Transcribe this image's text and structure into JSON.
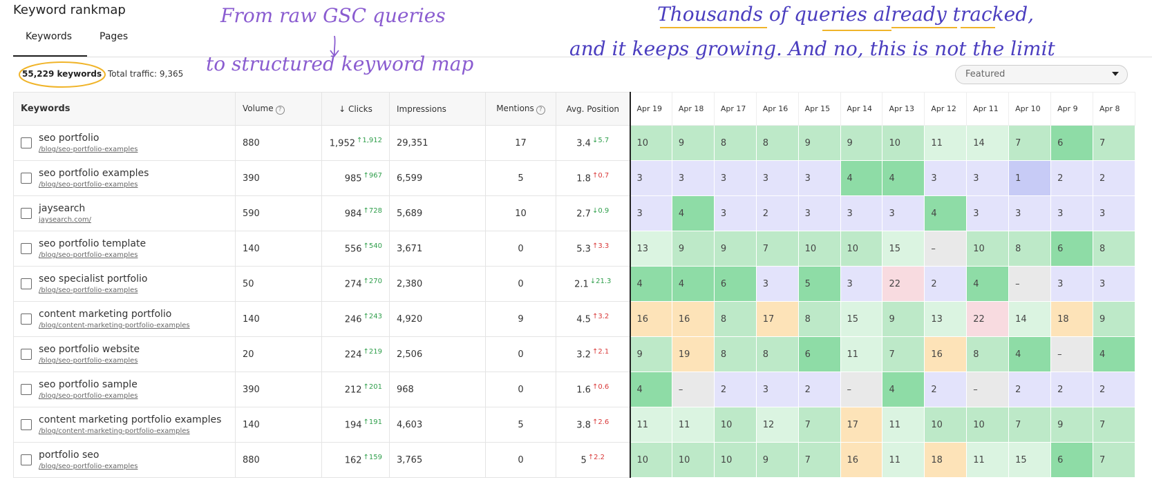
{
  "header": {
    "title": "Keyword rankmap",
    "tabs": [
      "Keywords",
      "Pages"
    ],
    "summary_keywords": "55,229 keywords",
    "summary_traffic": "Total traffic: 9,365",
    "sort": "Featured"
  },
  "annotations": [
    "From raw GSC queries",
    "to structured keyword map",
    "Thousands of queries already tracked,",
    "and it keeps growing. And no, this is not the limit"
  ],
  "table": {
    "columns": [
      "Keywords",
      "Volume",
      "↓ Clicks",
      "Impressions",
      "Mentions",
      "Avg. Position"
    ],
    "dates": [
      "Apr 19",
      "Apr 18",
      "Apr 17",
      "Apr 16",
      "Apr 15",
      "Apr 14",
      "Apr 13",
      "Apr 12",
      "Apr 11",
      "Apr 10",
      "Apr 9",
      "Apr 8"
    ],
    "rows": [
      {
        "keyword": "seo portfolio",
        "url": "/blog/seo-portfolio-examples",
        "volume": "880",
        "clicks": "1,952",
        "clicks_change": "↑1,912",
        "impressions": "29,351",
        "mentions": "17",
        "position": "3.4",
        "position_change": "↓5.7",
        "ranks": [
          10,
          9,
          8,
          8,
          9,
          9,
          10,
          11,
          14,
          7,
          6,
          7
        ]
      },
      {
        "keyword": "seo portfolio examples",
        "url": "/blog/seo-portfolio-examples",
        "volume": "390",
        "clicks": "985",
        "clicks_change": "↑967",
        "impressions": "6,599",
        "mentions": "5",
        "position": "1.8",
        "position_change": "↑0.7",
        "ranks": [
          3,
          3,
          3,
          3,
          3,
          4,
          4,
          3,
          3,
          1,
          2,
          2
        ]
      },
      {
        "keyword": "jaysearch",
        "url": "jaysearch.com/",
        "volume": "590",
        "clicks": "984",
        "clicks_change": "↑728",
        "impressions": "5,689",
        "mentions": "10",
        "position": "2.7",
        "position_change": "↓0.9",
        "ranks": [
          3,
          4,
          3,
          2,
          3,
          3,
          3,
          4,
          3,
          3,
          3,
          3
        ]
      },
      {
        "keyword": "seo portfolio template",
        "url": "/blog/seo-portfolio-examples",
        "volume": "140",
        "clicks": "556",
        "clicks_change": "↑540",
        "impressions": "3,671",
        "mentions": "0",
        "position": "5.3",
        "position_change": "↑3.3",
        "ranks": [
          13,
          9,
          9,
          7,
          10,
          10,
          15,
          "–",
          10,
          8,
          6,
          8
        ]
      },
      {
        "keyword": "seo specialist portfolio",
        "url": "/blog/seo-portfolio-examples",
        "volume": "50",
        "clicks": "274",
        "clicks_change": "↑270",
        "impressions": "2,380",
        "mentions": "0",
        "position": "2.1",
        "position_change": "↓21.3",
        "ranks": [
          4,
          4,
          6,
          3,
          5,
          3,
          22,
          2,
          4,
          "–",
          3,
          3
        ]
      },
      {
        "keyword": "content marketing portfolio",
        "url": "/blog/content-marketing-portfolio-examples",
        "volume": "140",
        "clicks": "246",
        "clicks_change": "↑243",
        "impressions": "4,920",
        "mentions": "9",
        "position": "4.5",
        "position_change": "↑3.2",
        "ranks": [
          16,
          16,
          8,
          17,
          8,
          15,
          9,
          13,
          22,
          14,
          18,
          9
        ]
      },
      {
        "keyword": "seo portfolio website",
        "url": "/blog/seo-portfolio-examples",
        "volume": "20",
        "clicks": "224",
        "clicks_change": "↑219",
        "impressions": "2,506",
        "mentions": "0",
        "position": "3.2",
        "position_change": "↑2.1",
        "ranks": [
          9,
          19,
          8,
          8,
          6,
          11,
          7,
          16,
          8,
          4,
          "–",
          4
        ]
      },
      {
        "keyword": "seo portfolio sample",
        "url": "/blog/seo-portfolio-examples",
        "volume": "390",
        "clicks": "212",
        "clicks_change": "↑201",
        "impressions": "968",
        "mentions": "0",
        "position": "1.6",
        "position_change": "↑0.6",
        "ranks": [
          4,
          "–",
          2,
          3,
          2,
          "–",
          4,
          2,
          "–",
          2,
          2,
          2
        ]
      },
      {
        "keyword": "content marketing portfolio examples",
        "url": "/blog/content-marketing-portfolio-examples",
        "volume": "140",
        "clicks": "194",
        "clicks_change": "↑191",
        "impressions": "4,603",
        "mentions": "5",
        "position": "3.8",
        "position_change": "↑2.6",
        "ranks": [
          11,
          11,
          10,
          12,
          7,
          17,
          11,
          10,
          10,
          7,
          9,
          7
        ]
      },
      {
        "keyword": "portfolio seo",
        "url": "/blog/seo-portfolio-examples",
        "volume": "880",
        "clicks": "162",
        "clicks_change": "↑159",
        "impressions": "3,765",
        "mentions": "0",
        "position": "5",
        "position_change": "↑2.2",
        "ranks": [
          10,
          10,
          10,
          9,
          7,
          16,
          11,
          18,
          11,
          15,
          6,
          7
        ]
      }
    ]
  }
}
